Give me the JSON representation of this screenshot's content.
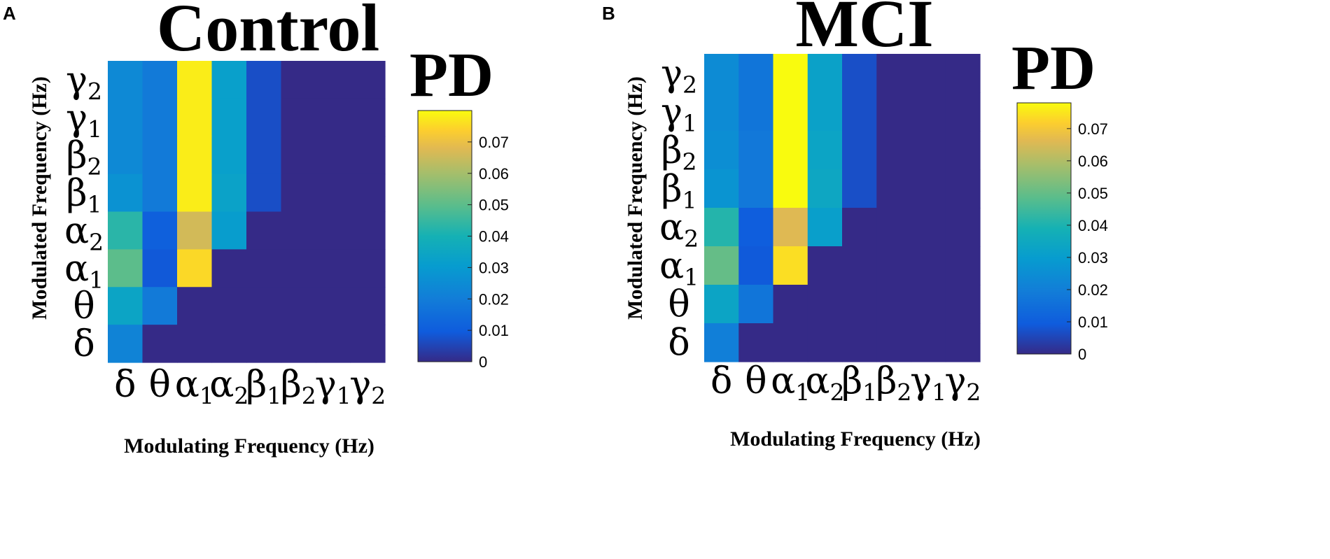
{
  "chart_data": [
    {
      "type": "heatmap",
      "panel_label": "A",
      "title": "Control",
      "colorbar_label": "PD",
      "xlabel": "Modulating Frequency (Hz)",
      "ylabel": "Modulated Frequency (Hz)",
      "x_ticks": [
        {
          "base": "δ",
          "sub": ""
        },
        {
          "base": "θ",
          "sub": ""
        },
        {
          "base": "α",
          "sub": "1"
        },
        {
          "base": "α",
          "sub": "2"
        },
        {
          "base": "β",
          "sub": "1"
        },
        {
          "base": "β",
          "sub": "2"
        },
        {
          "base": "γ",
          "sub": "1"
        },
        {
          "base": "γ",
          "sub": "2"
        }
      ],
      "y_ticks_bottom_to_top": [
        {
          "base": "δ",
          "sub": ""
        },
        {
          "base": "θ",
          "sub": ""
        },
        {
          "base": "α",
          "sub": "1"
        },
        {
          "base": "α",
          "sub": "2"
        },
        {
          "base": "β",
          "sub": "1"
        },
        {
          "base": "β",
          "sub": "2"
        },
        {
          "base": "γ",
          "sub": "1"
        },
        {
          "base": "γ",
          "sub": "2"
        }
      ],
      "colorbar": {
        "min": 0,
        "max": 0.08,
        "ticks": [
          "0",
          "0.01",
          "0.02",
          "0.03",
          "0.04",
          "0.05",
          "0.06",
          "0.07"
        ]
      },
      "values_rows_top_to_bottom": [
        [
          0.024,
          0.019,
          0.078,
          0.032,
          0.007,
          0,
          0,
          0
        ],
        [
          0.024,
          0.019,
          0.078,
          0.032,
          0.007,
          0,
          0,
          0
        ],
        [
          0.024,
          0.019,
          0.078,
          0.032,
          0.007,
          0,
          0,
          0
        ],
        [
          0.027,
          0.019,
          0.078,
          0.033,
          0.007,
          0,
          0,
          0
        ],
        [
          0.043,
          0.011,
          0.066,
          0.031,
          0,
          0,
          0,
          0
        ],
        [
          0.05,
          0.009,
          0.075,
          0,
          0,
          0,
          0,
          0
        ],
        [
          0.034,
          0.019,
          0,
          0,
          0,
          0,
          0,
          0
        ],
        [
          0.022,
          0,
          0,
          0,
          0,
          0,
          0,
          0
        ]
      ]
    },
    {
      "type": "heatmap",
      "panel_label": "B",
      "title": "MCI",
      "colorbar_label": "PD",
      "xlabel": "Modulating Frequency (Hz)",
      "ylabel": "Modulated Frequency (Hz)",
      "x_ticks": [
        {
          "base": "δ",
          "sub": ""
        },
        {
          "base": "θ",
          "sub": ""
        },
        {
          "base": "α",
          "sub": "1"
        },
        {
          "base": "α",
          "sub": "2"
        },
        {
          "base": "β",
          "sub": "1"
        },
        {
          "base": "β",
          "sub": "2"
        },
        {
          "base": "γ",
          "sub": "1"
        },
        {
          "base": "γ",
          "sub": "2"
        }
      ],
      "y_ticks_bottom_to_top": [
        {
          "base": "δ",
          "sub": ""
        },
        {
          "base": "θ",
          "sub": ""
        },
        {
          "base": "α",
          "sub": "1"
        },
        {
          "base": "α",
          "sub": "2"
        },
        {
          "base": "β",
          "sub": "1"
        },
        {
          "base": "β",
          "sub": "2"
        },
        {
          "base": "γ",
          "sub": "1"
        },
        {
          "base": "γ",
          "sub": "2"
        }
      ],
      "colorbar": {
        "min": 0,
        "max": 0.078,
        "ticks": [
          "0",
          "0.01",
          "0.02",
          "0.03",
          "0.04",
          "0.05",
          "0.06",
          "0.07"
        ]
      },
      "values_rows_top_to_bottom": [
        [
          0.024,
          0.017,
          0.078,
          0.032,
          0.007,
          0,
          0,
          0
        ],
        [
          0.024,
          0.017,
          0.078,
          0.032,
          0.007,
          0,
          0,
          0
        ],
        [
          0.025,
          0.018,
          0.078,
          0.033,
          0.007,
          0,
          0,
          0
        ],
        [
          0.027,
          0.018,
          0.078,
          0.034,
          0.007,
          0,
          0,
          0
        ],
        [
          0.041,
          0.01,
          0.066,
          0.031,
          0,
          0,
          0,
          0
        ],
        [
          0.05,
          0.009,
          0.074,
          0,
          0,
          0,
          0,
          0
        ],
        [
          0.033,
          0.017,
          0,
          0,
          0,
          0,
          0,
          0
        ],
        [
          0.02,
          0,
          0,
          0,
          0,
          0,
          0,
          0
        ]
      ]
    }
  ]
}
